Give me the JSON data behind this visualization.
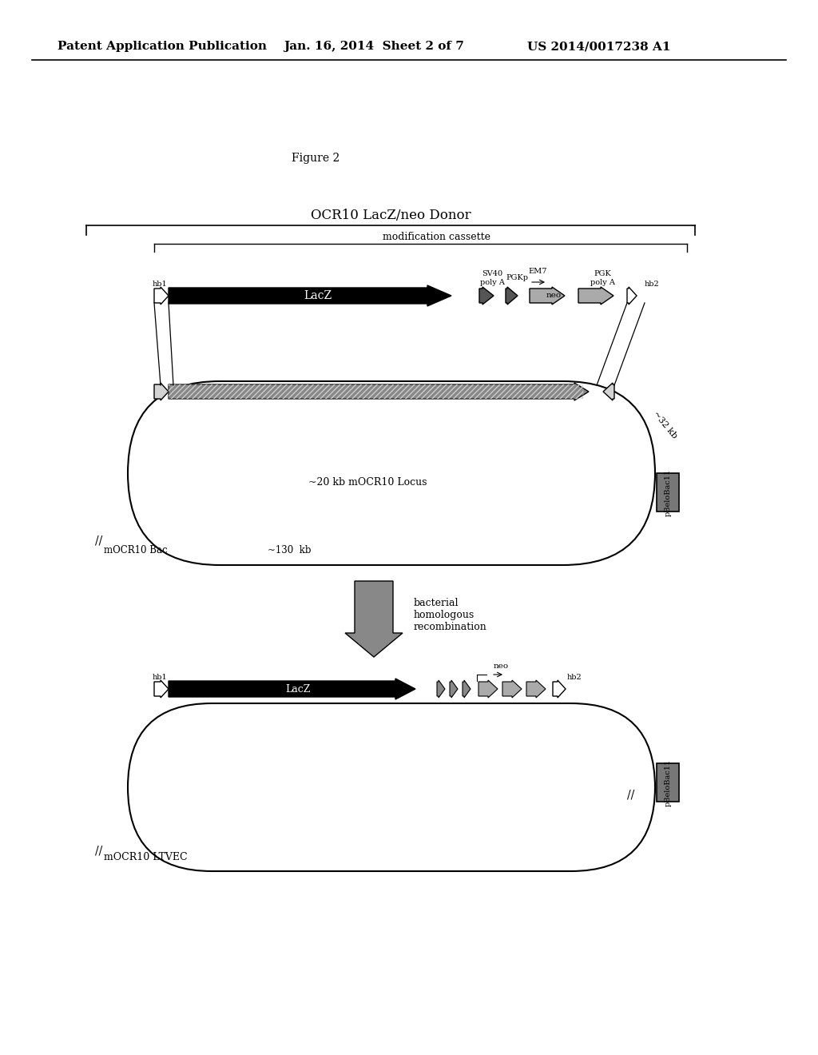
{
  "bg_color": "#ffffff",
  "header_left": "Patent Application Publication",
  "header_mid": "Jan. 16, 2014  Sheet 2 of 7",
  "header_right": "US 2014/0017238 A1",
  "figure_label": "Figure 2",
  "title_bracket": "OCR10 LacZ/neo Donor",
  "mod_cassette_label": "modification cassette",
  "lacz_label": "LacZ",
  "sv40_label": "SV40\npoly A",
  "pgkp_label": "PGKp",
  "em7_label": "EM7",
  "neo_label": "neo",
  "pgk_label": "PGK\npoly A",
  "hb1_label": "hb1",
  "hb2_label": "hb2",
  "locus_label": "~20 kb mOCR10 Locus",
  "kb32_label": "~32 kb",
  "pbelo_label": "pBeloBac11",
  "mocr10bac_label": "mOCR10 Bac",
  "kb130_label": "~130  kb",
  "arrow_label": "bacterial\nhomologous\nrecombination",
  "ltvec_hb1": "hb1",
  "ltvec_lacz": "LacZ",
  "ltvec_neo": "neo",
  "ltvec_hb2": "hb2",
  "ltvec_pbelo": "pBeloBac11",
  "ltvec_label": "mOCR10 LTVEC"
}
